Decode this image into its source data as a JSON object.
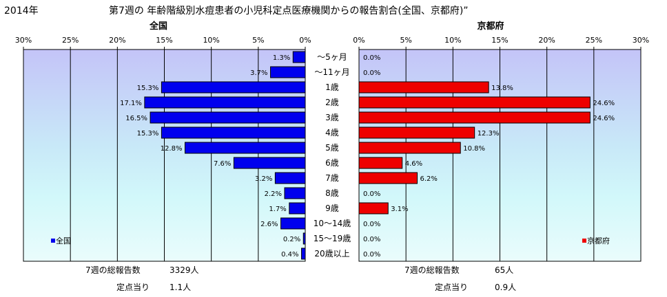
{
  "header": {
    "year": "2014年",
    "title": "第7週の  年齢階級別水痘患者の小児科定点医療機関からの報告割合(全国、京都府)”"
  },
  "chart_data": {
    "type": "bar",
    "orientation": "horizontal",
    "unit": "%",
    "categories": [
      "～5ヶ月",
      "～11ヶ月",
      "1歳",
      "2歳",
      "3歳",
      "4歳",
      "5歳",
      "6歳",
      "7歳",
      "8歳",
      "9歳",
      "10～14歳",
      "15～19歳",
      "20歳以上"
    ],
    "xlim": [
      0,
      30
    ],
    "ticks": [
      "0%",
      "5%",
      "10%",
      "15%",
      "20%",
      "25%",
      "30%"
    ],
    "grid": true,
    "panels": [
      {
        "name": "全国",
        "title": "全国",
        "legend": "全国",
        "direction": "left",
        "color": "#0000ee",
        "values": [
          1.3,
          3.7,
          15.3,
          17.1,
          16.5,
          15.3,
          12.8,
          7.6,
          3.2,
          2.2,
          1.7,
          2.6,
          0.2,
          0.4
        ],
        "labels": [
          "1.3%",
          "3.7%",
          "15.3%",
          "17.1%",
          "16.5%",
          "15.3%",
          "12.8%",
          "7.6%",
          "3.2%",
          "2.2%",
          "1.7%",
          "2.6%",
          "0.2%",
          "0.4%"
        ],
        "ticks": [
          "30%",
          "25%",
          "20%",
          "15%",
          "10%",
          "5%",
          "0%"
        ],
        "footer": {
          "total_label": "7週の総報告数",
          "total_value": "3329人",
          "per_label": "定点当り",
          "per_value": "1.1人"
        }
      },
      {
        "name": "京都府",
        "title": "京都府",
        "legend": "京都府",
        "direction": "right",
        "color": "#ee0000",
        "values": [
          0.0,
          0.0,
          13.8,
          24.6,
          24.6,
          12.3,
          10.8,
          4.6,
          6.2,
          0.0,
          3.1,
          0.0,
          0.0,
          0.0
        ],
        "labels": [
          "0.0%",
          "0.0%",
          "13.8%",
          "24.6%",
          "24.6%",
          "12.3%",
          "10.8%",
          "4.6%",
          "6.2%",
          "0.0%",
          "3.1%",
          "0.0%",
          "0.0%",
          "0.0%"
        ],
        "ticks": [
          "0%",
          "5%",
          "10%",
          "15%",
          "20%",
          "25%",
          "30%"
        ],
        "footer": {
          "total_label": "7週の総報告数",
          "total_value": "65人",
          "per_label": "定点当り",
          "per_value": "0.9人"
        }
      }
    ]
  }
}
